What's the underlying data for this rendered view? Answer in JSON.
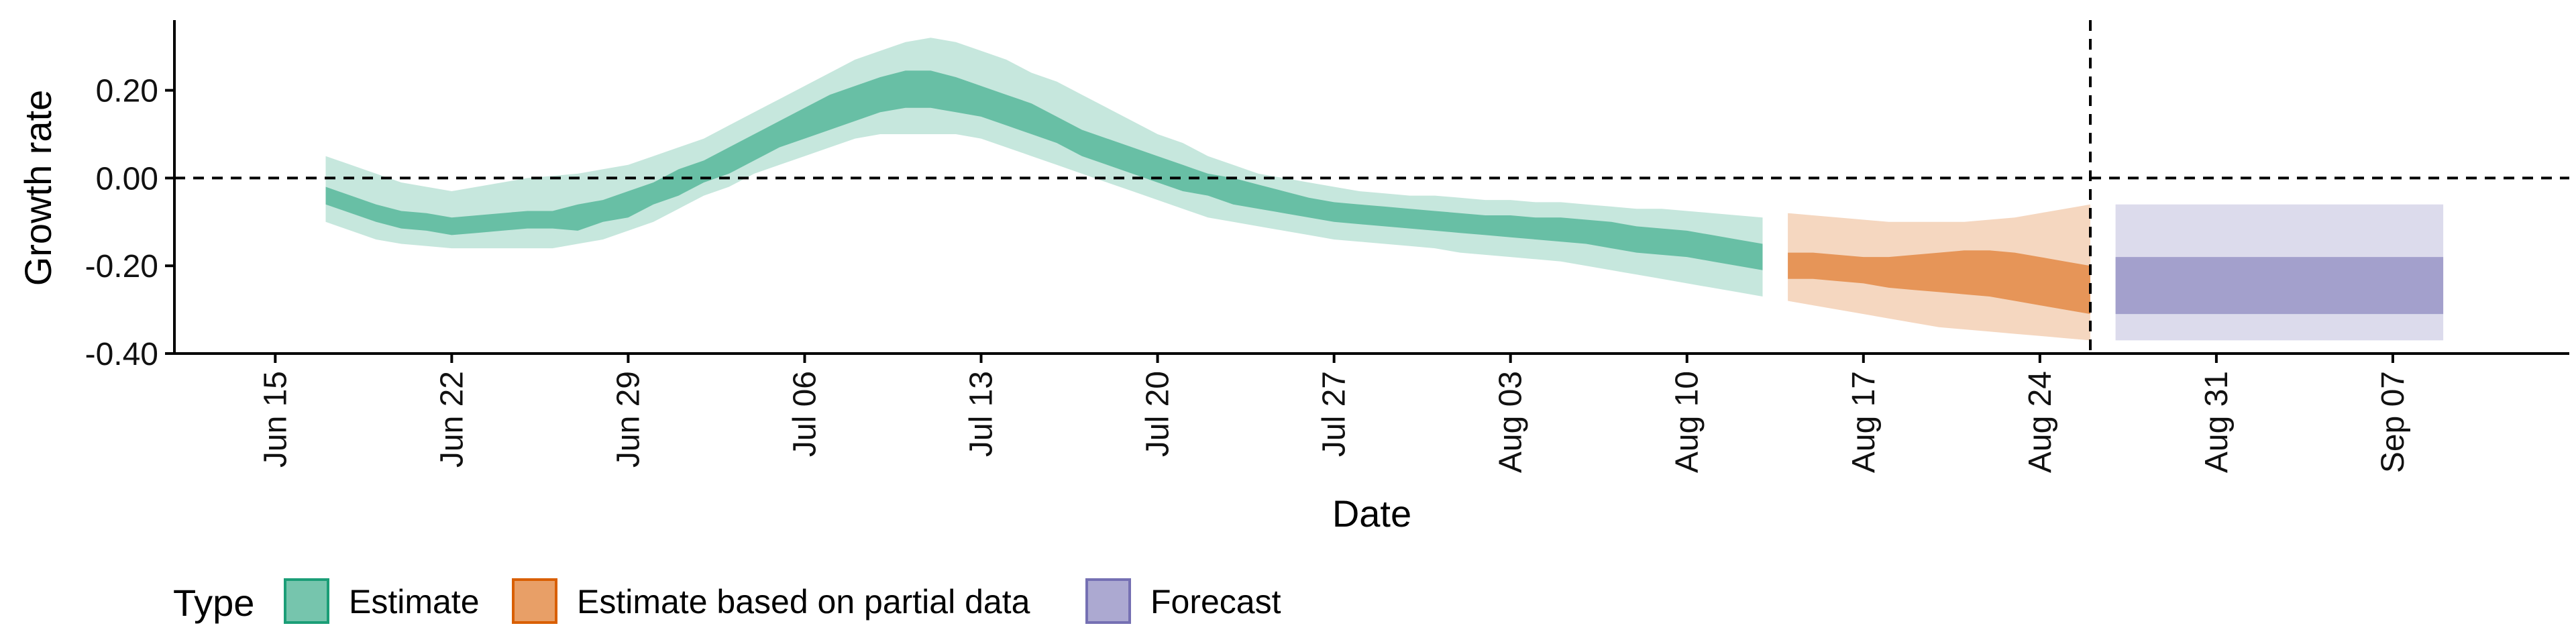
{
  "chart_data": {
    "type": "area",
    "title": "",
    "xlabel": "Date",
    "ylabel": "Growth rate",
    "xlim": [
      "2022-06-11",
      "2022-09-14"
    ],
    "ylim": [
      -0.4,
      0.36
    ],
    "y_ticks": [
      0.2,
      0.0,
      -0.2,
      -0.4
    ],
    "y_tick_labels": [
      "0.20",
      "0.00",
      "-0.20",
      "-0.40"
    ],
    "x_ticks": [
      "2022-06-15",
      "2022-06-22",
      "2022-06-29",
      "2022-07-06",
      "2022-07-13",
      "2022-07-20",
      "2022-07-27",
      "2022-08-03",
      "2022-08-10",
      "2022-08-17",
      "2022-08-24",
      "2022-08-31",
      "2022-09-07"
    ],
    "x_tick_labels": [
      "Jun 15",
      "Jun 22",
      "Jun 29",
      "Jul 06",
      "Jul 13",
      "Jul 20",
      "Jul 27",
      "Aug 03",
      "Aug 10",
      "Aug 17",
      "Aug 24",
      "Aug 31",
      "Sep 07"
    ],
    "reference_lines": {
      "y": 0.0,
      "x": "2022-08-26"
    },
    "grid": false,
    "legend": {
      "title": "Type",
      "position": "bottom-left",
      "items": [
        "Estimate",
        "Estimate based on partial data",
        "Forecast"
      ]
    },
    "series": [
      {
        "name": "Estimate",
        "color": "#1b9e77",
        "x": [
          "2022-06-17",
          "2022-06-18",
          "2022-06-19",
          "2022-06-20",
          "2022-06-21",
          "2022-06-22",
          "2022-06-23",
          "2022-06-24",
          "2022-06-25",
          "2022-06-26",
          "2022-06-27",
          "2022-06-28",
          "2022-06-29",
          "2022-06-30",
          "2022-07-01",
          "2022-07-02",
          "2022-07-03",
          "2022-07-04",
          "2022-07-05",
          "2022-07-06",
          "2022-07-07",
          "2022-07-08",
          "2022-07-09",
          "2022-07-10",
          "2022-07-11",
          "2022-07-12",
          "2022-07-13",
          "2022-07-14",
          "2022-07-15",
          "2022-07-16",
          "2022-07-17",
          "2022-07-18",
          "2022-07-19",
          "2022-07-20",
          "2022-07-21",
          "2022-07-22",
          "2022-07-23",
          "2022-07-24",
          "2022-07-25",
          "2022-07-26",
          "2022-07-27",
          "2022-07-28",
          "2022-07-29",
          "2022-07-30",
          "2022-07-31",
          "2022-08-01",
          "2022-08-02",
          "2022-08-03",
          "2022-08-04",
          "2022-08-05",
          "2022-08-06",
          "2022-08-07",
          "2022-08-08",
          "2022-08-09",
          "2022-08-10",
          "2022-08-11",
          "2022-08-12",
          "2022-08-13"
        ],
        "lower_90": [
          -0.1,
          -0.12,
          -0.14,
          -0.15,
          -0.155,
          -0.16,
          -0.16,
          -0.16,
          -0.16,
          -0.16,
          -0.15,
          -0.14,
          -0.12,
          -0.1,
          -0.07,
          -0.04,
          -0.02,
          0.01,
          0.03,
          0.05,
          0.07,
          0.09,
          0.1,
          0.1,
          0.1,
          0.1,
          0.09,
          0.07,
          0.05,
          0.03,
          0.01,
          -0.01,
          -0.03,
          -0.05,
          -0.07,
          -0.09,
          -0.1,
          -0.11,
          -0.12,
          -0.13,
          -0.14,
          -0.145,
          -0.15,
          -0.155,
          -0.16,
          -0.17,
          -0.175,
          -0.18,
          -0.185,
          -0.19,
          -0.2,
          -0.21,
          -0.22,
          -0.23,
          -0.24,
          -0.25,
          -0.26,
          -0.27
        ],
        "lower_50": [
          -0.06,
          -0.08,
          -0.1,
          -0.115,
          -0.12,
          -0.13,
          -0.125,
          -0.12,
          -0.115,
          -0.115,
          -0.12,
          -0.1,
          -0.09,
          -0.06,
          -0.04,
          -0.01,
          0.01,
          0.04,
          0.07,
          0.09,
          0.11,
          0.13,
          0.15,
          0.16,
          0.16,
          0.15,
          0.14,
          0.12,
          0.1,
          0.08,
          0.05,
          0.03,
          0.01,
          -0.01,
          -0.03,
          -0.04,
          -0.06,
          -0.07,
          -0.08,
          -0.09,
          -0.1,
          -0.105,
          -0.11,
          -0.115,
          -0.12,
          -0.125,
          -0.13,
          -0.135,
          -0.14,
          -0.145,
          -0.15,
          -0.16,
          -0.17,
          -0.175,
          -0.18,
          -0.19,
          -0.2,
          -0.21
        ],
        "upper_50": [
          -0.02,
          -0.04,
          -0.06,
          -0.075,
          -0.08,
          -0.09,
          -0.085,
          -0.08,
          -0.075,
          -0.075,
          -0.06,
          -0.05,
          -0.03,
          -0.01,
          0.02,
          0.04,
          0.07,
          0.1,
          0.13,
          0.16,
          0.19,
          0.21,
          0.23,
          0.245,
          0.245,
          0.23,
          0.21,
          0.19,
          0.17,
          0.14,
          0.11,
          0.09,
          0.07,
          0.05,
          0.03,
          0.01,
          0.0,
          -0.015,
          -0.03,
          -0.045,
          -0.055,
          -0.06,
          -0.065,
          -0.07,
          -0.075,
          -0.08,
          -0.085,
          -0.085,
          -0.09,
          -0.09,
          -0.095,
          -0.1,
          -0.11,
          -0.115,
          -0.12,
          -0.13,
          -0.14,
          -0.15
        ],
        "upper_90": [
          0.05,
          0.03,
          0.01,
          -0.01,
          -0.02,
          -0.03,
          -0.02,
          -0.01,
          0.0,
          0.005,
          0.01,
          0.02,
          0.03,
          0.05,
          0.07,
          0.09,
          0.12,
          0.15,
          0.18,
          0.21,
          0.24,
          0.27,
          0.29,
          0.31,
          0.32,
          0.31,
          0.29,
          0.27,
          0.24,
          0.22,
          0.19,
          0.16,
          0.13,
          0.1,
          0.08,
          0.05,
          0.03,
          0.01,
          0.0,
          -0.01,
          -0.02,
          -0.03,
          -0.035,
          -0.04,
          -0.04,
          -0.045,
          -0.05,
          -0.05,
          -0.055,
          -0.055,
          -0.06,
          -0.065,
          -0.07,
          -0.07,
          -0.075,
          -0.08,
          -0.085,
          -0.09
        ]
      },
      {
        "name": "Estimate based on partial data",
        "color": "#d95f02",
        "x": [
          "2022-08-14",
          "2022-08-15",
          "2022-08-16",
          "2022-08-17",
          "2022-08-18",
          "2022-08-19",
          "2022-08-20",
          "2022-08-21",
          "2022-08-22",
          "2022-08-23",
          "2022-08-24",
          "2022-08-25",
          "2022-08-26"
        ],
        "lower_90": [
          -0.28,
          -0.29,
          -0.3,
          -0.31,
          -0.32,
          -0.33,
          -0.34,
          -0.345,
          -0.35,
          -0.355,
          -0.36,
          -0.365,
          -0.37
        ],
        "lower_50": [
          -0.23,
          -0.23,
          -0.235,
          -0.24,
          -0.25,
          -0.255,
          -0.26,
          -0.265,
          -0.27,
          -0.28,
          -0.29,
          -0.3,
          -0.31
        ],
        "upper_50": [
          -0.17,
          -0.17,
          -0.175,
          -0.18,
          -0.18,
          -0.175,
          -0.17,
          -0.165,
          -0.165,
          -0.17,
          -0.18,
          -0.19,
          -0.2
        ],
        "upper_90": [
          -0.08,
          -0.085,
          -0.09,
          -0.095,
          -0.1,
          -0.1,
          -0.1,
          -0.1,
          -0.095,
          -0.09,
          -0.08,
          -0.07,
          -0.06
        ]
      },
      {
        "name": "Forecast",
        "color": "#7570b3",
        "x": [
          "2022-08-27",
          "2022-09-09"
        ],
        "lower_90": [
          -0.37,
          -0.37
        ],
        "lower_50": [
          -0.31,
          -0.31
        ],
        "upper_50": [
          -0.18,
          -0.18
        ],
        "upper_90": [
          -0.06,
          -0.06
        ]
      }
    ]
  }
}
